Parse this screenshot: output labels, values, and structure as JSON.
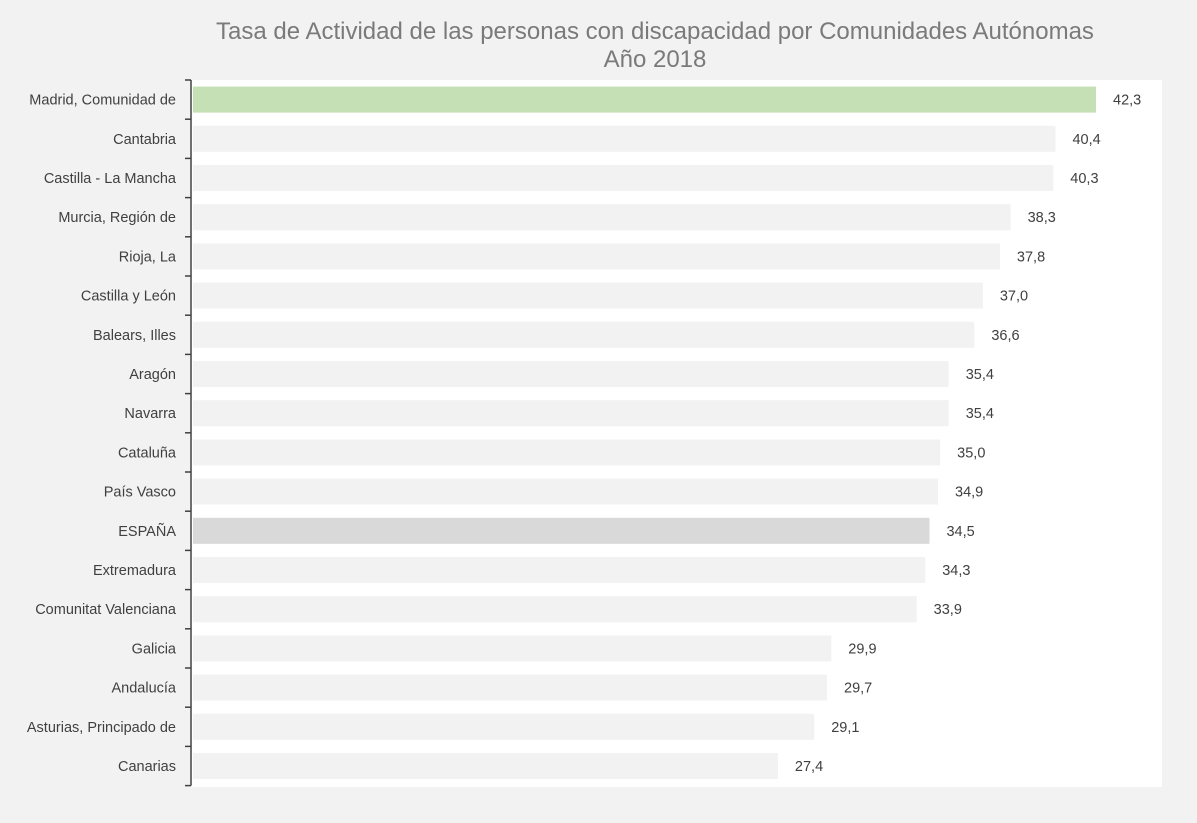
{
  "chart_data": {
    "type": "bar",
    "orientation": "horizontal",
    "title": "Tasa de Actividad de las personas con discapacidad por Comunidades Autónomas",
    "subtitle": "Año 2018",
    "xlabel": "",
    "ylabel": "",
    "xlim": [
      0,
      42.3
    ],
    "grid": false,
    "legend": "none",
    "categories": [
      "Madrid, Comunidad de",
      "Cantabria",
      "Castilla - La Mancha",
      "Murcia, Región de",
      "Rioja, La",
      "Castilla y León",
      "Balears, Illes",
      "Aragón",
      "Navarra",
      "Cataluña",
      "País Vasco",
      "ESPAÑA",
      "Extremadura",
      "Comunitat Valenciana",
      "Galicia",
      "Andalucía",
      "Asturias, Principado de",
      "Canarias"
    ],
    "values": [
      42.3,
      40.4,
      40.3,
      38.3,
      37.8,
      37.0,
      36.6,
      35.4,
      35.4,
      35.0,
      34.9,
      34.5,
      34.3,
      33.9,
      29.9,
      29.7,
      29.1,
      27.4
    ],
    "value_labels": [
      "42,3",
      "40,4",
      "40,3",
      "38,3",
      "37,8",
      "37,0",
      "36,6",
      "35,4",
      "35,4",
      "35,0",
      "34,9",
      "34,5",
      "34,3",
      "33,9",
      "29,9",
      "29,7",
      "29,1",
      "27,4"
    ],
    "colors": {
      "default": "#f2f2f2",
      "highlight_top": "#c5e0b4",
      "highlight_total": "#d9d9d9",
      "axis": "#404040",
      "text": "#404040",
      "title": "#7a7a7a"
    },
    "highlight": {
      "Madrid, Comunidad de": "highlight_top",
      "ESPAÑA": "highlight_total"
    }
  }
}
